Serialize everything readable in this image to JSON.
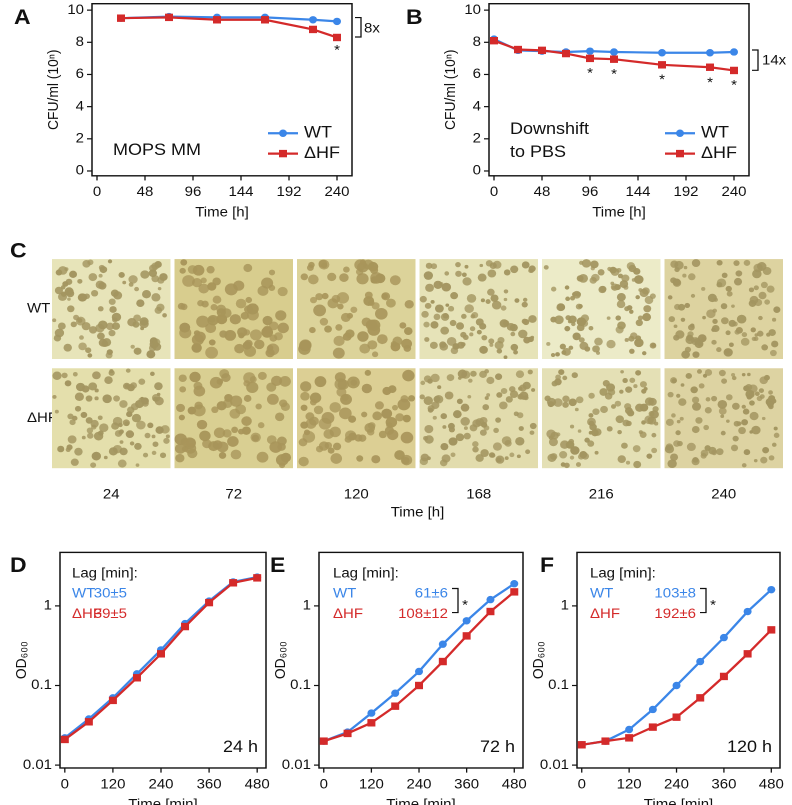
{
  "chart_data": [
    {
      "panel": "A",
      "type": "line",
      "x_label": "Time [h]",
      "y_label": "CFU/ml (10ⁿ)",
      "xlim": [
        -5,
        255
      ],
      "xticks": [
        0,
        48,
        96,
        144,
        192,
        240
      ],
      "ylim": [
        -0.3,
        10.4
      ],
      "yticks": [
        0,
        2,
        4,
        6,
        8,
        10
      ],
      "text": [
        "MOPS MM"
      ],
      "legend": "lower right",
      "x": [
        24,
        72,
        120,
        168,
        216,
        240
      ],
      "series": [
        {
          "name": "WT",
          "color": "#3b86e8",
          "marker": "circle",
          "values": [
            9.5,
            9.6,
            9.55,
            9.55,
            9.4,
            9.3
          ]
        },
        {
          "name": "ΔHF",
          "color": "#d42a2a",
          "marker": "square",
          "values": [
            9.5,
            9.55,
            9.4,
            9.4,
            8.8,
            8.3
          ]
        }
      ],
      "annotations": [
        "8x",
        "*"
      ]
    },
    {
      "panel": "B",
      "type": "line",
      "x_label": "Time [h]",
      "y_label": "CFU/ml (10ⁿ)",
      "xlim": [
        -5,
        255
      ],
      "xticks": [
        0,
        48,
        96,
        144,
        192,
        240
      ],
      "ylim": [
        -0.3,
        10.4
      ],
      "yticks": [
        0,
        2,
        4,
        6,
        8,
        10
      ],
      "text": [
        "Downshift",
        "to PBS"
      ],
      "legend": "lower right",
      "x": [
        0,
        24,
        48,
        72,
        96,
        120,
        168,
        216,
        240
      ],
      "series": [
        {
          "name": "WT",
          "color": "#3b86e8",
          "marker": "circle",
          "values": [
            8.2,
            7.5,
            7.45,
            7.4,
            7.45,
            7.4,
            7.35,
            7.35,
            7.4
          ]
        },
        {
          "name": "ΔHF",
          "color": "#d42a2a",
          "marker": "square",
          "values": [
            8.1,
            7.55,
            7.5,
            7.3,
            7.0,
            6.95,
            6.6,
            6.45,
            6.25
          ]
        }
      ],
      "annotations": [
        "14x",
        "*",
        "*",
        "*",
        "*",
        "*"
      ]
    },
    {
      "panel": "D",
      "type": "line",
      "log_y": true,
      "x_label": "Time [min]",
      "y_label": "OD₆₀₀",
      "xlim": [
        -12,
        502
      ],
      "xticks": [
        0,
        120,
        240,
        360,
        480
      ],
      "ylim": [
        0.0092,
        4.7
      ],
      "yticks": [
        0.01,
        0.1,
        1
      ],
      "text": [
        "24 h"
      ],
      "lag_title": "Lag [min]:",
      "x": [
        0,
        60,
        120,
        180,
        240,
        300,
        360,
        420,
        480
      ],
      "series": [
        {
          "name": "WT",
          "color": "#3b86e8",
          "marker": "circle",
          "lag": "30±5",
          "values": [
            0.022,
            0.038,
            0.07,
            0.14,
            0.28,
            0.6,
            1.15,
            2.0,
            2.3
          ]
        },
        {
          "name": "ΔHF",
          "color": "#d42a2a",
          "marker": "square",
          "lag": "39±5",
          "values": [
            0.021,
            0.035,
            0.065,
            0.125,
            0.25,
            0.55,
            1.1,
            1.95,
            2.25
          ]
        }
      ],
      "annotations": []
    },
    {
      "panel": "E",
      "type": "line",
      "log_y": true,
      "x_label": "Time [min]",
      "y_label": "OD₆₀₀",
      "xlim": [
        -12,
        502
      ],
      "xticks": [
        0,
        120,
        240,
        360,
        480
      ],
      "ylim": [
        0.0092,
        4.7
      ],
      "yticks": [
        0.01,
        0.1,
        1
      ],
      "text": [
        "72 h"
      ],
      "lag_title": "Lag [min]:",
      "x": [
        0,
        60,
        120,
        180,
        240,
        300,
        360,
        420,
        480
      ],
      "series": [
        {
          "name": "WT",
          "color": "#3b86e8",
          "marker": "circle",
          "lag": "61±6",
          "values": [
            0.02,
            0.026,
            0.045,
            0.08,
            0.15,
            0.33,
            0.65,
            1.2,
            1.9
          ]
        },
        {
          "name": "ΔHF",
          "color": "#d42a2a",
          "marker": "square",
          "lag": "108±12",
          "values": [
            0.02,
            0.025,
            0.034,
            0.055,
            0.1,
            0.2,
            0.42,
            0.85,
            1.5
          ]
        }
      ],
      "annotations": [
        "*"
      ]
    },
    {
      "panel": "F",
      "type": "line",
      "log_y": true,
      "x_label": "Time [min]",
      "y_label": "OD₆₀₀",
      "xlim": [
        -12,
        502
      ],
      "xticks": [
        0,
        120,
        240,
        360,
        480
      ],
      "ylim": [
        0.0092,
        4.7
      ],
      "yticks": [
        0.01,
        0.1,
        1
      ],
      "text": [
        "120 h"
      ],
      "lag_title": "Lag [min]:",
      "x": [
        0,
        60,
        120,
        180,
        240,
        300,
        360,
        420,
        480
      ],
      "series": [
        {
          "name": "WT",
          "color": "#3b86e8",
          "marker": "circle",
          "lag": "103±8",
          "values": [
            0.018,
            0.02,
            0.028,
            0.05,
            0.1,
            0.2,
            0.4,
            0.85,
            1.6
          ]
        },
        {
          "name": "ΔHF",
          "color": "#d42a2a",
          "marker": "square",
          "lag": "192±6",
          "values": [
            0.018,
            0.02,
            0.022,
            0.03,
            0.04,
            0.07,
            0.13,
            0.25,
            0.5
          ]
        }
      ],
      "annotations": [
        "*"
      ]
    }
  ],
  "plates": {
    "panel": "C",
    "rows": [
      "WT",
      "ΔHF"
    ],
    "columns": [
      24,
      72,
      120,
      168,
      216,
      240
    ],
    "x_label": "Time [h]"
  }
}
